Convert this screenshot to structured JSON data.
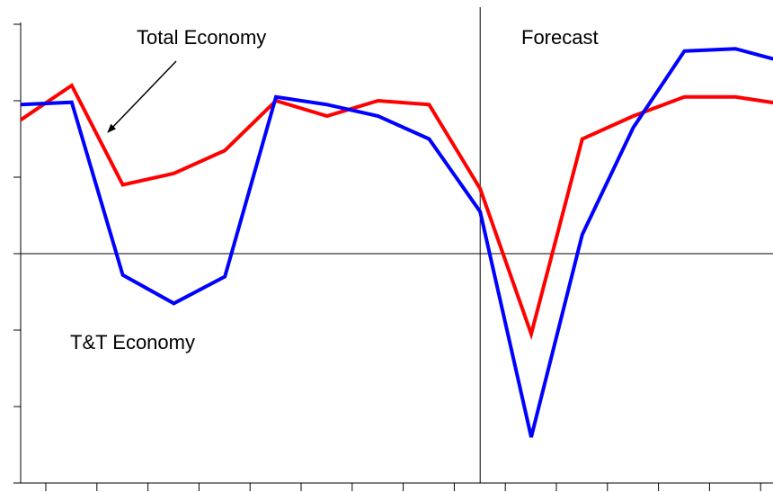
{
  "chart_data": {
    "type": "line",
    "title": "",
    "xlabel": "",
    "ylabel": "",
    "x": [
      0,
      1,
      2,
      3,
      4,
      5,
      6,
      7,
      8,
      9,
      10,
      11,
      12,
      13,
      14,
      15,
      16
    ],
    "ylim": [
      -3,
      3
    ],
    "grid": false,
    "forecast_start_x": 9,
    "series": [
      {
        "name": "Total Economy",
        "color": "#ff0000",
        "values": [
          1.75,
          2.2,
          0.9,
          1.05,
          1.35,
          2.0,
          1.8,
          2.0,
          1.95,
          0.85,
          -1.05,
          1.5,
          1.8,
          2.05,
          2.05,
          1.95,
          1.85
        ]
      },
      {
        "name": "T&T Economy",
        "color": "#0000ff",
        "values": [
          1.95,
          1.98,
          -0.28,
          -0.65,
          -0.3,
          2.05,
          1.95,
          1.8,
          1.5,
          0.55,
          -2.4,
          0.25,
          1.65,
          2.65,
          2.68,
          2.5,
          2.3
        ]
      }
    ],
    "annotations": {
      "total_economy": "Total Economy",
      "tt_economy": "T&T Economy",
      "forecast": "Forecast"
    }
  }
}
